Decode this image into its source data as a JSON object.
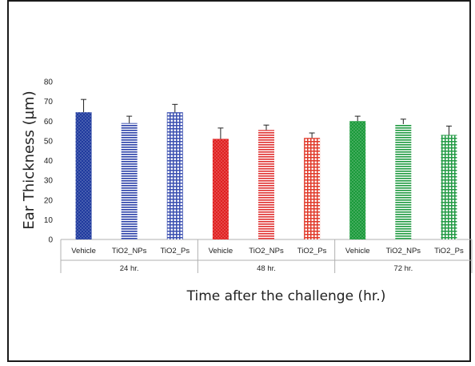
{
  "chart_data": {
    "type": "bar",
    "title": "",
    "ylabel": "Ear Thickness (µm)",
    "xlabel": "Time after the challenge (hr.)",
    "ylim": [
      0,
      80
    ],
    "yticks": [
      0,
      10,
      20,
      30,
      40,
      50,
      60,
      70,
      80
    ],
    "grid": false,
    "legend": "none",
    "groups": [
      {
        "label": "24 hr.",
        "bars": [
          {
            "category": "Vehicle",
            "value": 64.5,
            "error": 6.5,
            "color": "#1f3a9e",
            "pattern": "dots"
          },
          {
            "category": "TiO2_NPs",
            "value": 59,
            "error": 3.5,
            "color": "#2a3fa8",
            "pattern": "hlines"
          },
          {
            "category": "TiO2_Ps",
            "value": 64.5,
            "error": 4,
            "color": "#3a4fb0",
            "pattern": "grid"
          }
        ]
      },
      {
        "label": "48 hr.",
        "bars": [
          {
            "category": "Vehicle",
            "value": 51,
            "error": 5.5,
            "color": "#e02020",
            "pattern": "dots"
          },
          {
            "category": "TiO2_NPs",
            "value": 55.5,
            "error": 2.5,
            "color": "#e03030",
            "pattern": "hlines"
          },
          {
            "category": "TiO2_Ps",
            "value": 51.5,
            "error": 2.5,
            "color": "#e03a2a",
            "pattern": "grid"
          }
        ]
      },
      {
        "label": "72 hr.",
        "bars": [
          {
            "category": "Vehicle",
            "value": 60,
            "error": 2.5,
            "color": "#1a9a3a",
            "pattern": "dots"
          },
          {
            "category": "TiO2_NPs",
            "value": 58.5,
            "error": 2.5,
            "color": "#1e9a40",
            "pattern": "hlines"
          },
          {
            "category": "TiO2_Ps",
            "value": 53,
            "error": 4.5,
            "color": "#229a44",
            "pattern": "grid"
          }
        ]
      }
    ]
  }
}
